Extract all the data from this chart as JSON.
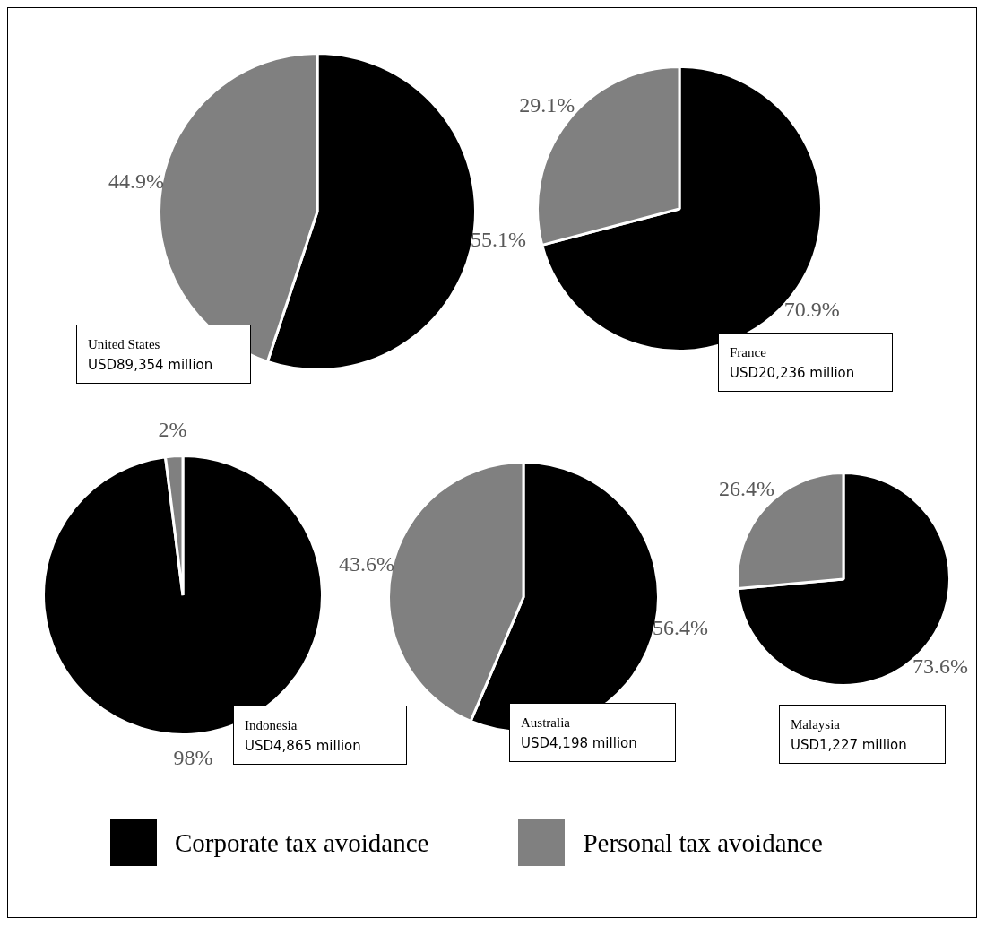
{
  "chart_data": [
    {
      "type": "pie",
      "categories": [
        "Corporate tax avoidance",
        "Personal tax avoidance"
      ],
      "values": [
        55.1,
        44.9
      ],
      "colors": [
        "#000000",
        "#808080"
      ],
      "value_labels": [
        "55.1%",
        "44.9%"
      ],
      "annotations": [
        "United States",
        "USD89,354 million"
      ],
      "legend": "bottom"
    },
    {
      "type": "pie",
      "categories": [
        null,
        null
      ],
      "values": [
        70.9,
        29.1
      ],
      "colors": [
        "#000000",
        "#808080"
      ],
      "value_labels": [
        "70.9%",
        "29.1%"
      ],
      "annotations": [
        "France",
        "USD20,236 million"
      ]
    },
    {
      "type": "pie",
      "categories": [
        null,
        null
      ],
      "values": [
        98,
        2
      ],
      "colors": [
        "#000000",
        "#808080"
      ],
      "value_labels": [
        "98%",
        "2%"
      ],
      "annotations": [
        "Indonesia",
        "USD4,865 million"
      ]
    },
    {
      "type": "pie",
      "categories": [
        null,
        null
      ],
      "values": [
        56.4,
        43.6
      ],
      "colors": [
        "#000000",
        "#808080"
      ],
      "value_labels": [
        "56.4%",
        "43.6%"
      ],
      "annotations": [
        "Australia",
        "USD4,198 million"
      ]
    },
    {
      "type": "pie",
      "categories": [
        null,
        null
      ],
      "values": [
        73.6,
        26.4
      ],
      "colors": [
        "#000000",
        "#808080"
      ],
      "value_labels": [
        "73.6%",
        "26.4%"
      ],
      "annotations": [
        "Malaysia",
        "USD1,227 million"
      ]
    }
  ]
}
